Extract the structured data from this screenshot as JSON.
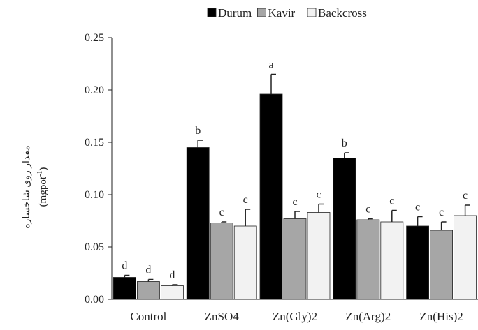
{
  "chart_data": {
    "type": "bar",
    "categories": [
      "Control",
      "ZnSO4",
      "Zn(Gly)2",
      "Zn(Arg)2",
      "Zn(His)2"
    ],
    "series": [
      {
        "name": "Durum",
        "color": "#000000",
        "values": [
          0.021,
          0.145,
          0.196,
          0.135,
          0.07
        ],
        "errors": [
          0.002,
          0.007,
          0.019,
          0.005,
          0.009
        ],
        "labels": [
          "d",
          "b",
          "a",
          "b",
          "c"
        ]
      },
      {
        "name": "Kavir",
        "color": "#a6a6a6",
        "values": [
          0.017,
          0.073,
          0.077,
          0.076,
          0.066
        ],
        "errors": [
          0.002,
          0.001,
          0.007,
          0.001,
          0.008
        ],
        "labels": [
          "d",
          "c",
          "c",
          "c",
          "c"
        ]
      },
      {
        "name": "Backcross",
        "color": "#f2f2f2",
        "values": [
          0.013,
          0.07,
          0.083,
          0.074,
          0.08
        ],
        "errors": [
          0.001,
          0.016,
          0.008,
          0.011,
          0.01
        ],
        "labels": [
          "d",
          "c",
          "c",
          "c",
          "c"
        ]
      }
    ],
    "ylim": [
      0,
      0.25
    ],
    "yticks": [
      "0.00",
      "0.05",
      "0.10",
      "0.15",
      "0.20",
      "0.25"
    ],
    "ylabel": "مقدار روی شاخساره",
    "ylabel_unit": "(mgpot",
    "ylabel_unit_sup": "-1",
    "ylabel_unit_close": ")",
    "grid": false,
    "legend_position": "top-center"
  }
}
